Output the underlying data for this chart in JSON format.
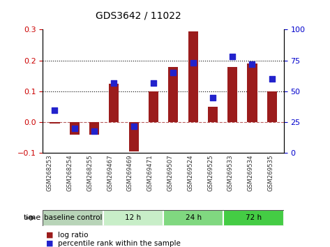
{
  "title": "GDS3642 / 11022",
  "categories": [
    "GSM268253",
    "GSM268254",
    "GSM268255",
    "GSM269467",
    "GSM269469",
    "GSM269471",
    "GSM269507",
    "GSM269524",
    "GSM269525",
    "GSM269533",
    "GSM269534",
    "GSM269535"
  ],
  "log_ratio": [
    -0.005,
    -0.04,
    -0.04,
    0.125,
    -0.095,
    0.1,
    0.18,
    0.295,
    0.05,
    0.178,
    0.19,
    0.1
  ],
  "percentile_rank": [
    35,
    20,
    18,
    57,
    22,
    57,
    65,
    73,
    45,
    78,
    72,
    60
  ],
  "bar_color": "#9B1C1C",
  "dot_color": "#2222CC",
  "ylim_left": [
    -0.1,
    0.3
  ],
  "ylim_right": [
    0,
    100
  ],
  "yticks_left": [
    -0.1,
    0.0,
    0.1,
    0.2,
    0.3
  ],
  "yticks_right": [
    0,
    25,
    50,
    75,
    100
  ],
  "groups": [
    {
      "label": "baseline control",
      "start": 0,
      "end": 3,
      "color": "#B8D4B8"
    },
    {
      "label": "12 h",
      "start": 3,
      "end": 6,
      "color": "#C8EEC8"
    },
    {
      "label": "24 h",
      "start": 6,
      "end": 9,
      "color": "#80D880"
    },
    {
      "label": "72 h",
      "start": 9,
      "end": 12,
      "color": "#44CC44"
    }
  ],
  "time_label": "time",
  "legend_bar_label": "log ratio",
  "legend_dot_label": "percentile rank within the sample",
  "bg_color": "#FFFFFF",
  "tick_label_color_left": "#CC0000",
  "tick_label_color_right": "#0000CC",
  "bar_width": 0.5,
  "dot_size": 40
}
